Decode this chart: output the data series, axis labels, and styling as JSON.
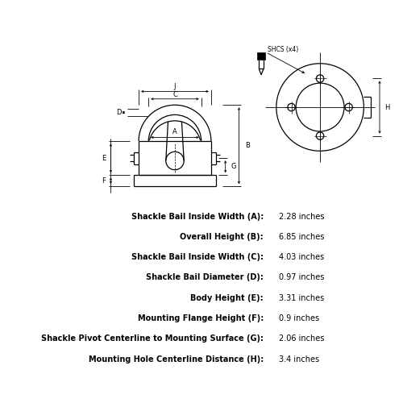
{
  "bg_color": "#ffffff",
  "line_color": "#000000",
  "specs": [
    {
      "label": "Shackle Bail Inside Width (A):",
      "value": "2.28 inches"
    },
    {
      "label": "Overall Height (B):",
      "value": "6.85 inches"
    },
    {
      "label": "Shackle Bail Inside Width (C):",
      "value": "4.03 inches"
    },
    {
      "label": "Shackle Bail Diameter (D):",
      "value": "0.97 inches"
    },
    {
      "label": "Body Height (E):",
      "value": "3.31 inches"
    },
    {
      "label": "Mounting Flange Height (F):",
      "value": "0.9 inches"
    },
    {
      "label": "Shackle Pivot Centerline to Mounting Surface (G):",
      "value": "2.06 inches"
    },
    {
      "label": "Mounting Hole Centerline Distance (H):",
      "value": "3.4 inches"
    }
  ],
  "label_fontsize": 7.0,
  "value_fontsize": 7.0,
  "dim_fontsize": 6.0,
  "shcs_fontsize": 5.5
}
